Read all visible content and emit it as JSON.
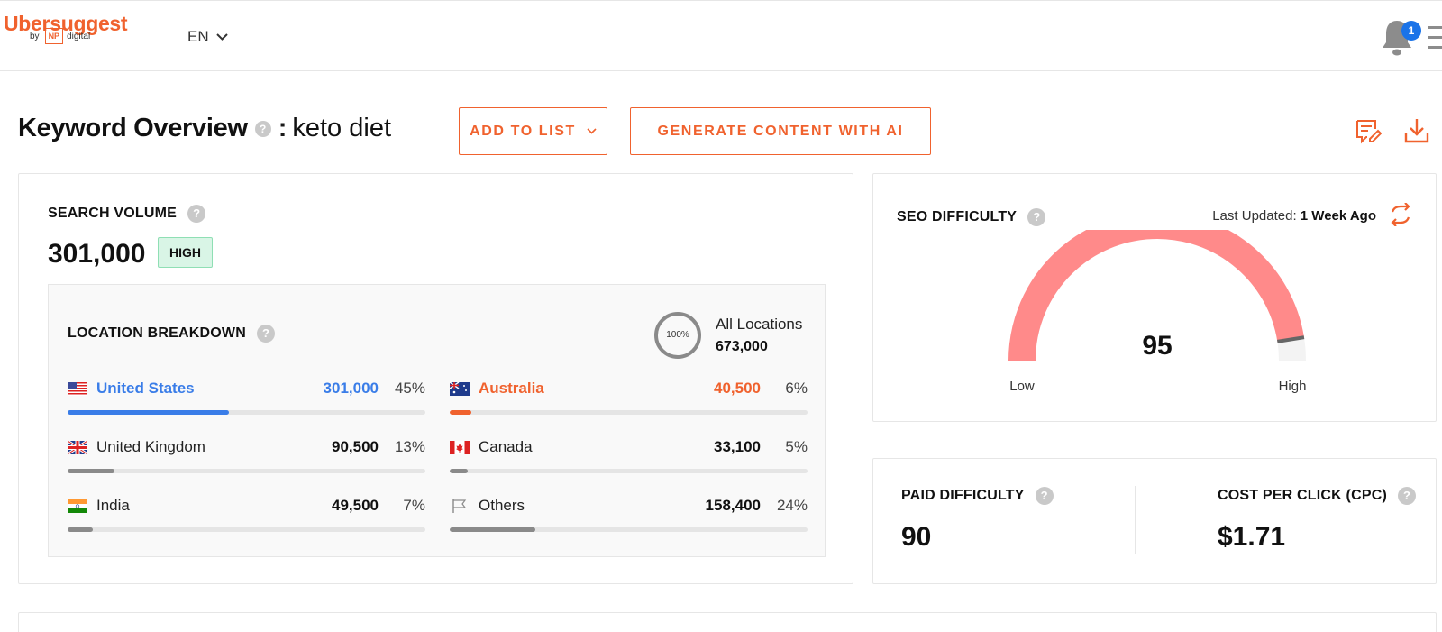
{
  "app": {
    "brand": "Ubersuggest",
    "by": "by",
    "np": "NP",
    "digital": "digital",
    "language": "EN",
    "notifications_count": "1"
  },
  "title": {
    "text": "Keyword Overview",
    "separator": ":",
    "keyword": "keto diet",
    "help": "?"
  },
  "actions": {
    "add_to_list": "ADD TO LIST",
    "generate_content": "GENERATE CONTENT WITH AI"
  },
  "search_volume": {
    "label": "SEARCH VOLUME",
    "value": "301,000",
    "badge": "HIGH",
    "location_breakdown": {
      "label": "LOCATION BREAKDOWN",
      "all_percent": "100%",
      "all_label": "All Locations",
      "all_value": "673,000",
      "locations": [
        {
          "name": "United States",
          "value": "301,000",
          "percent": "45%",
          "fraction": 0.45,
          "color": "#3a7de8"
        },
        {
          "name": "Australia",
          "value": "40,500",
          "percent": "6%",
          "fraction": 0.06,
          "color": "#f0622e"
        },
        {
          "name": "United Kingdom",
          "value": "90,500",
          "percent": "13%",
          "fraction": 0.13,
          "color": "#8a8a8a"
        },
        {
          "name": "Canada",
          "value": "33,100",
          "percent": "5%",
          "fraction": 0.05,
          "color": "#8a8a8a"
        },
        {
          "name": "India",
          "value": "49,500",
          "percent": "7%",
          "fraction": 0.07,
          "color": "#8a8a8a"
        },
        {
          "name": "Others",
          "value": "158,400",
          "percent": "24%",
          "fraction": 0.24,
          "color": "#8a8a8a"
        }
      ]
    }
  },
  "seo_difficulty": {
    "label": "SEO DIFFICULTY",
    "last_updated_label": "Last Updated:",
    "last_updated_value": "1 Week Ago",
    "value": "95",
    "score": 95,
    "low_label": "Low",
    "high_label": "High",
    "gauge_color": "#ff8a8a"
  },
  "paid_difficulty": {
    "label": "PAID DIFFICULTY",
    "value": "90"
  },
  "cpc": {
    "label": "COST PER CLICK (CPC)",
    "value": "$1.71"
  },
  "colors": {
    "brand": "#f0622e",
    "link_blue": "#3a7de8",
    "badge_green_bg": "#d9f5e6"
  },
  "icons": [
    "chevron-down-icon",
    "bell-icon",
    "menu-icon",
    "help-icon",
    "edit-list-icon",
    "download-icon",
    "refresh-icon",
    "flag-icon"
  ]
}
